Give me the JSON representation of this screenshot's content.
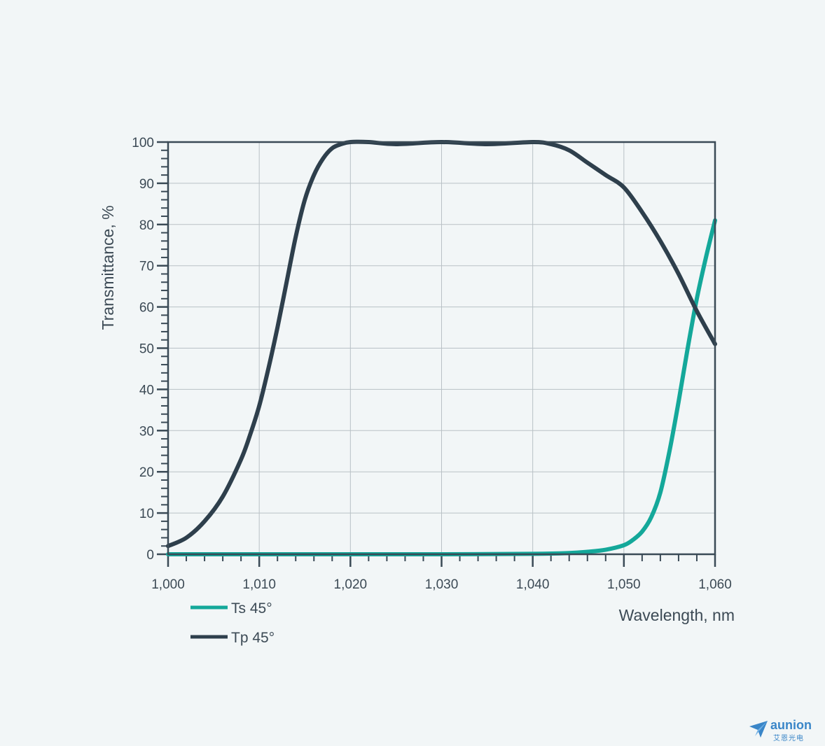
{
  "chart_data": {
    "type": "line",
    "xlabel": "Wavelength, nm",
    "ylabel": "Transmittance, %",
    "xlim": [
      1000,
      1060
    ],
    "ylim": [
      0,
      100
    ],
    "x_ticks": [
      1000,
      1010,
      1020,
      1030,
      1040,
      1050,
      1060
    ],
    "x_tick_labels": [
      "1,000",
      "1,010",
      "1,020",
      "1,030",
      "1,040",
      "1,050",
      "1,060"
    ],
    "y_ticks": [
      0,
      10,
      20,
      30,
      40,
      50,
      60,
      70,
      80,
      90,
      100
    ],
    "y_tick_labels": [
      "0",
      "10",
      "20",
      "30",
      "40",
      "50",
      "60",
      "70",
      "80",
      "90",
      "100"
    ],
    "grid": true,
    "legend_position": "bottom-left",
    "series": [
      {
        "name": "Ts 45°",
        "color": "#14a89a",
        "x": [
          1000,
          1010,
          1020,
          1030,
          1040,
          1044,
          1046,
          1048,
          1050,
          1051,
          1052,
          1053,
          1054,
          1055,
          1056,
          1057,
          1058,
          1059,
          1060
        ],
        "y": [
          0,
          0,
          0,
          0,
          0.1,
          0.3,
          0.6,
          1.1,
          2.2,
          3.5,
          5.5,
          9,
          15,
          25,
          37,
          50,
          62,
          72,
          81
        ]
      },
      {
        "name": "Tp 45°",
        "color": "#2e3f4c",
        "x": [
          1000,
          1002,
          1004,
          1006,
          1008,
          1009,
          1010,
          1011,
          1012,
          1013,
          1014,
          1015,
          1016,
          1017,
          1018,
          1019,
          1020,
          1022,
          1025,
          1030,
          1035,
          1040,
          1042,
          1044,
          1046,
          1048,
          1050,
          1052,
          1054,
          1056,
          1058,
          1060
        ],
        "y": [
          2,
          4,
          8,
          14,
          23,
          29,
          36,
          45,
          55,
          66,
          77,
          86,
          92,
          96,
          98.5,
          99.5,
          100,
          100,
          99.5,
          100,
          99.5,
          100,
          99.5,
          98,
          95,
          92,
          89,
          83,
          76,
          68,
          59,
          51
        ]
      }
    ]
  },
  "logo": {
    "word": "aunion",
    "sub": "艾恩光电"
  }
}
